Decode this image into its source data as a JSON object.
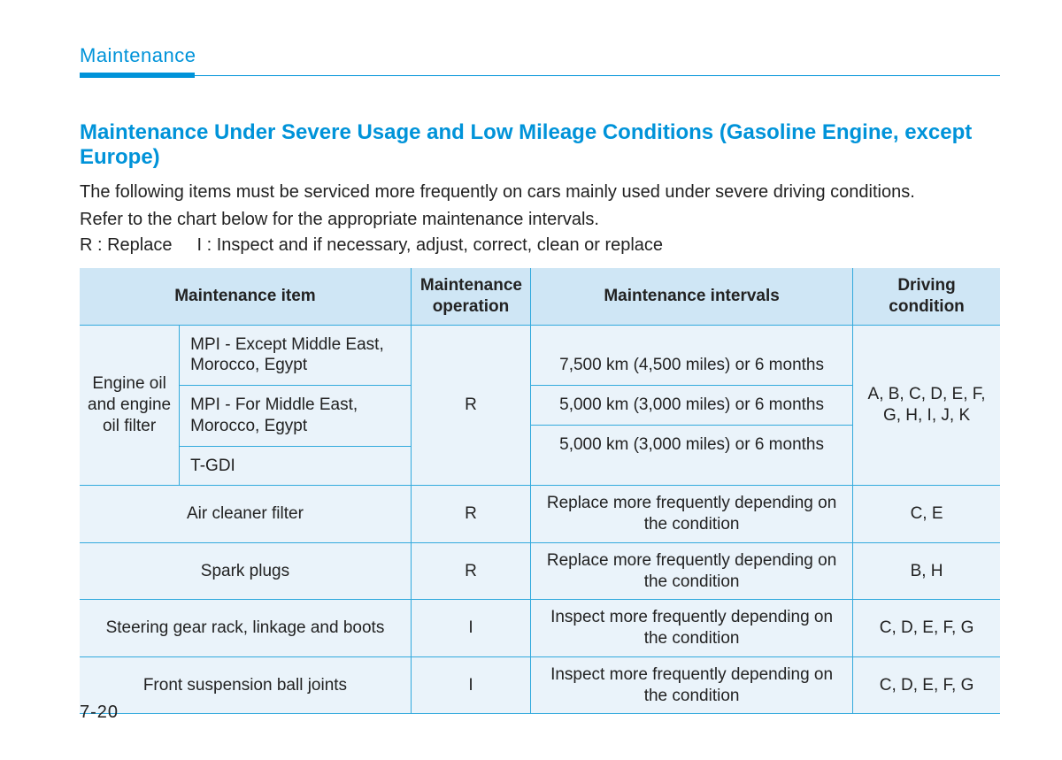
{
  "header": {
    "section": "Maintenance"
  },
  "title": "Maintenance Under Severe Usage and Low Mileage Conditions (Gasoline Engine, except Europe)",
  "intro": {
    "line1": "The following items must be serviced more frequently on cars mainly used under severe driving conditions.",
    "line2": "Refer to the chart below for the appropriate maintenance intervals."
  },
  "legend": {
    "r": "R : Replace",
    "i": "I : Inspect and if necessary, adjust, correct, clean or replace"
  },
  "table": {
    "headers": {
      "item": "Maintenance item",
      "operation": "Maintenance operation",
      "intervals": "Maintenance intervals",
      "condition": "Driving condition"
    },
    "engine_oil": {
      "item": "Engine oil and engine oil filter",
      "subitems": [
        "MPI - Except Middle East, Morocco, Egypt",
        "MPI - For Middle East, Morocco, Egypt",
        "T-GDI"
      ],
      "operation": "R",
      "intervals": [
        "7,500 km (4,500 miles) or 6 months",
        "5,000 km (3,000 miles) or 6 months",
        "5,000 km (3,000 miles) or 6 months"
      ],
      "condition": "A, B, C, D, E, F, G, H, I, J, K"
    },
    "rows": [
      {
        "item": "Air cleaner filter",
        "operation": "R",
        "intervals": "Replace more frequently depending on the condition",
        "condition": "C, E"
      },
      {
        "item": "Spark plugs",
        "operation": "R",
        "intervals": "Replace more frequently depending on the condition",
        "condition": "B, H"
      },
      {
        "item": "Steering gear rack, linkage and boots",
        "operation": "I",
        "intervals": "Inspect more frequently depending on the condition",
        "condition": "C, D, E, F, G"
      },
      {
        "item": "Front suspension ball joints",
        "operation": "I",
        "intervals": "Inspect more frequently depending on the condition",
        "condition": "C, D, E, F, G"
      }
    ]
  },
  "page_number": "7-20",
  "colors": {
    "accent": "#0093d9",
    "header_bg": "#cfe6f5",
    "row_bg": "#eaf3fa",
    "border": "#33aadd",
    "text": "#222222",
    "page_bg": "#ffffff"
  }
}
